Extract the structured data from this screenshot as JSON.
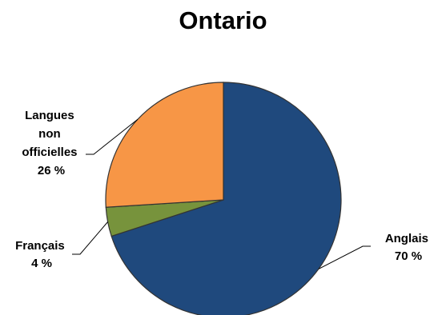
{
  "chart_data": {
    "type": "pie",
    "title": "Ontario",
    "slices": [
      {
        "label_lines": [
          "Anglais",
          "70 %"
        ],
        "value": 70,
        "color": "#1f497d"
      },
      {
        "label_lines": [
          "Français",
          "4 %"
        ],
        "value": 4,
        "color": "#77933c"
      },
      {
        "label_lines": [
          "Langues",
          "non",
          "officielles",
          "26 %"
        ],
        "value": 26,
        "color": "#f79646"
      }
    ]
  }
}
